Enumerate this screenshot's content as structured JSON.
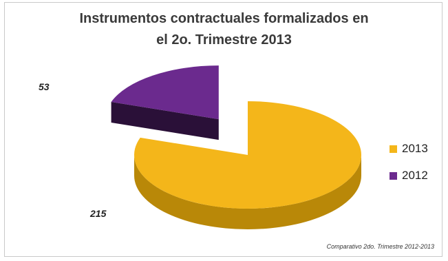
{
  "chart_data": {
    "type": "pie",
    "title_lines": [
      "Instrumentos contractuales formalizados en",
      "el 2o. Trimestre 2013"
    ],
    "slices": [
      {
        "name": "2013",
        "value": 215,
        "label": "215",
        "color": "#f4b61a",
        "side_color": "#b98808",
        "exploded": false
      },
      {
        "name": "2012",
        "value": 53,
        "label": "53",
        "color": "#6b2a8e",
        "side_color": "#2a1038",
        "exploded": true
      }
    ],
    "legend": {
      "placement": "right",
      "entries": [
        "2013",
        "2012"
      ]
    },
    "three_d": true,
    "annotation": "Comparativo 2do. Trimestre 2012-2013"
  }
}
